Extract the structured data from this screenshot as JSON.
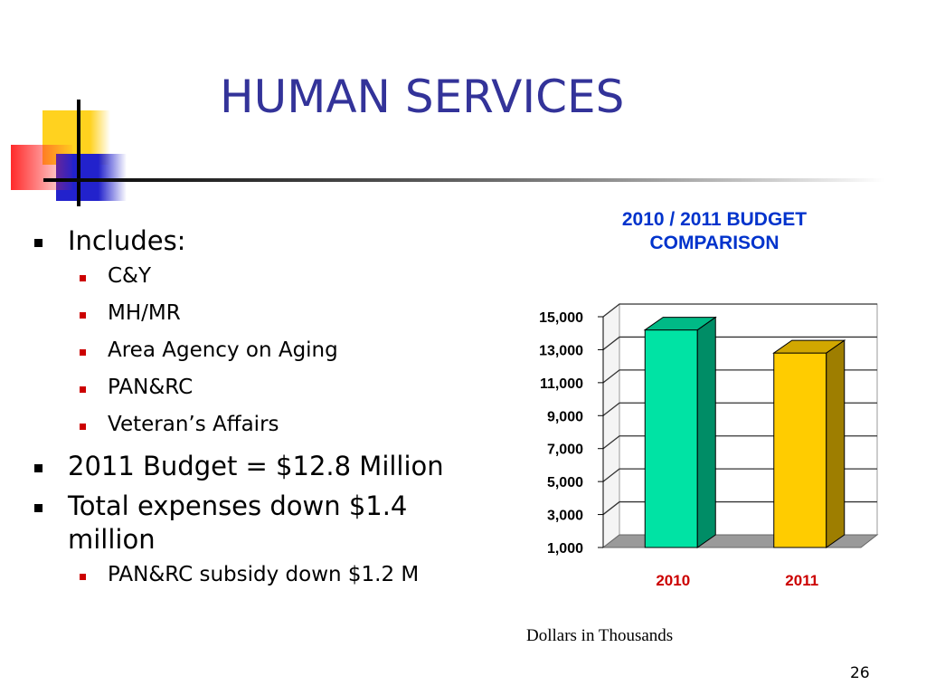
{
  "slide": {
    "title": "HUMAN SERVICES",
    "page_number": "26"
  },
  "bullets": [
    {
      "level": 1,
      "text": "Includes:"
    },
    {
      "level": 2,
      "text": "C&Y"
    },
    {
      "level": 2,
      "text": "MH/MR"
    },
    {
      "level": 2,
      "text": "Area Agency on Aging"
    },
    {
      "level": 2,
      "text": "PAN&RC"
    },
    {
      "level": 2,
      "text": "Veteran’s Affairs"
    },
    {
      "level": 1,
      "text": "2011 Budget = $12.8 Million"
    },
    {
      "level": 1,
      "text": "Total expenses down $1.4 million"
    },
    {
      "level": 2,
      "text": "PAN&RC subsidy down $1.2 M"
    }
  ],
  "chart_note": "Dollars in Thousands",
  "chart_data": {
    "type": "bar",
    "title_lines": [
      "2010 / 2011 BUDGET",
      "COMPARISON"
    ],
    "categories": [
      "2010",
      "2011"
    ],
    "values": [
      14200,
      12800
    ],
    "bar_colors": [
      "#00e3a4",
      "#ffcc00"
    ],
    "ylim": [
      1000,
      15000
    ],
    "y_ticks": [
      1000,
      3000,
      5000,
      7000,
      9000,
      11000,
      13000,
      15000
    ],
    "y_tick_labels": [
      "1,000",
      "3,000",
      "5,000",
      "7,000",
      "9,000",
      "11,000",
      "13,000",
      "15,000"
    ],
    "category_label_color": "#cc0000",
    "grid": true,
    "legend": "none",
    "style": "3d"
  }
}
